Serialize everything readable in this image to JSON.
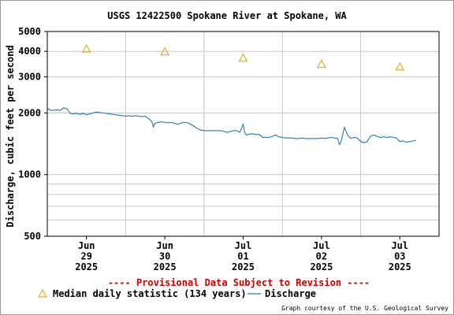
{
  "chart_data": {
    "type": "line",
    "title": "USGS 12422500 Spokane River at Spokane, WA",
    "ylabel": "Discharge, cubic feet per second",
    "xlabel": "",
    "yscale": "log",
    "ylim": [
      500,
      5000
    ],
    "xlim_hours": [
      0,
      120
    ],
    "grid": true,
    "y_ticks": [
      500,
      1000,
      2000,
      3000,
      4000,
      5000
    ],
    "y_tick_labels": [
      "500",
      "1000",
      "2000",
      "3000",
      "4000",
      "5000"
    ],
    "y_minor_ticks": [
      600,
      700,
      800,
      900
    ],
    "x_ticks": [
      {
        "hour": 12,
        "lines": [
          "Jun",
          "29",
          "2025"
        ]
      },
      {
        "hour": 36,
        "lines": [
          "Jun",
          "30",
          "2025"
        ]
      },
      {
        "hour": 60,
        "lines": [
          "Jul",
          "01",
          "2025"
        ]
      },
      {
        "hour": 84,
        "lines": [
          "Jul",
          "02",
          "2025"
        ]
      },
      {
        "hour": 108,
        "lines": [
          "Jul",
          "03",
          "2025"
        ]
      }
    ],
    "x_grid_hours": [
      24,
      48,
      72,
      96
    ],
    "series": [
      {
        "name": "Discharge",
        "color": "#1f77b4",
        "kind": "line",
        "points": [
          [
            0,
            2110
          ],
          [
            1,
            2060
          ],
          [
            2,
            2060
          ],
          [
            3,
            2070
          ],
          [
            4,
            2060
          ],
          [
            5,
            2120
          ],
          [
            6,
            2100
          ],
          [
            6.5,
            2050
          ],
          [
            7,
            1990
          ],
          [
            8,
            1980
          ],
          [
            9,
            1990
          ],
          [
            10,
            1970
          ],
          [
            11,
            1990
          ],
          [
            12,
            1960
          ],
          [
            13,
            1980
          ],
          [
            14,
            2000
          ],
          [
            15,
            2020
          ],
          [
            16,
            2010
          ],
          [
            17,
            2000
          ],
          [
            18,
            1990
          ],
          [
            19,
            1980
          ],
          [
            20,
            1970
          ],
          [
            21,
            1960
          ],
          [
            22,
            1950
          ],
          [
            23,
            1940
          ],
          [
            24,
            1930
          ],
          [
            25,
            1940
          ],
          [
            26,
            1930
          ],
          [
            27,
            1940
          ],
          [
            28,
            1930
          ],
          [
            29,
            1920
          ],
          [
            30,
            1930
          ],
          [
            31,
            1880
          ],
          [
            32,
            1820
          ],
          [
            32.5,
            1710
          ],
          [
            33,
            1780
          ],
          [
            34,
            1800
          ],
          [
            35,
            1810
          ],
          [
            36,
            1800
          ],
          [
            37,
            1790
          ],
          [
            38,
            1800
          ],
          [
            39,
            1780
          ],
          [
            40,
            1760
          ],
          [
            41,
            1790
          ],
          [
            42,
            1800
          ],
          [
            43,
            1790
          ],
          [
            44,
            1760
          ],
          [
            45,
            1720
          ],
          [
            46,
            1680
          ],
          [
            47,
            1650
          ],
          [
            48,
            1640
          ],
          [
            49,
            1640
          ],
          [
            50,
            1640
          ],
          [
            51,
            1640
          ],
          [
            52,
            1640
          ],
          [
            53,
            1640
          ],
          [
            54,
            1630
          ],
          [
            55,
            1610
          ],
          [
            56,
            1620
          ],
          [
            57,
            1640
          ],
          [
            58,
            1640
          ],
          [
            59,
            1610
          ],
          [
            60,
            1760
          ],
          [
            60.5,
            1600
          ],
          [
            61,
            1560
          ],
          [
            62,
            1580
          ],
          [
            63,
            1580
          ],
          [
            64,
            1570
          ],
          [
            65,
            1570
          ],
          [
            66,
            1520
          ],
          [
            67,
            1520
          ],
          [
            68,
            1520
          ],
          [
            69,
            1540
          ],
          [
            70,
            1560
          ],
          [
            71,
            1530
          ],
          [
            72,
            1520
          ],
          [
            73,
            1510
          ],
          [
            74,
            1510
          ],
          [
            75,
            1510
          ],
          [
            76,
            1500
          ],
          [
            77,
            1500
          ],
          [
            78,
            1510
          ],
          [
            79,
            1500
          ],
          [
            80,
            1500
          ],
          [
            81,
            1500
          ],
          [
            82,
            1500
          ],
          [
            83,
            1500
          ],
          [
            84,
            1510
          ],
          [
            85,
            1500
          ],
          [
            86,
            1510
          ],
          [
            87,
            1520
          ],
          [
            88,
            1510
          ],
          [
            89,
            1500
          ],
          [
            89.5,
            1400
          ],
          [
            90,
            1450
          ],
          [
            91,
            1700
          ],
          [
            92,
            1560
          ],
          [
            93,
            1500
          ],
          [
            94,
            1520
          ],
          [
            95,
            1510
          ],
          [
            96,
            1450
          ],
          [
            97,
            1430
          ],
          [
            98,
            1450
          ],
          [
            99,
            1540
          ],
          [
            100,
            1560
          ],
          [
            101,
            1540
          ],
          [
            102,
            1520
          ],
          [
            103,
            1530
          ],
          [
            104,
            1520
          ],
          [
            105,
            1530
          ],
          [
            106,
            1520
          ],
          [
            107,
            1510
          ],
          [
            108,
            1450
          ],
          [
            109,
            1460
          ],
          [
            110,
            1440
          ],
          [
            111,
            1450
          ],
          [
            112,
            1460
          ],
          [
            113,
            1470
          ]
        ]
      },
      {
        "name": "Median daily statistic (134 years)",
        "color": "#e0a000",
        "kind": "triangle",
        "points": [
          [
            12,
            4110
          ],
          [
            36,
            3980
          ],
          [
            60,
            3710
          ],
          [
            84,
            3460
          ],
          [
            108,
            3360
          ]
        ]
      }
    ],
    "annotation": "---- Provisional Data Subject to Revision ----",
    "annotation_color": "#cc0000",
    "legend_position": "bottom-left",
    "credit": "Graph courtesy of the U.S. Geological Survey"
  }
}
